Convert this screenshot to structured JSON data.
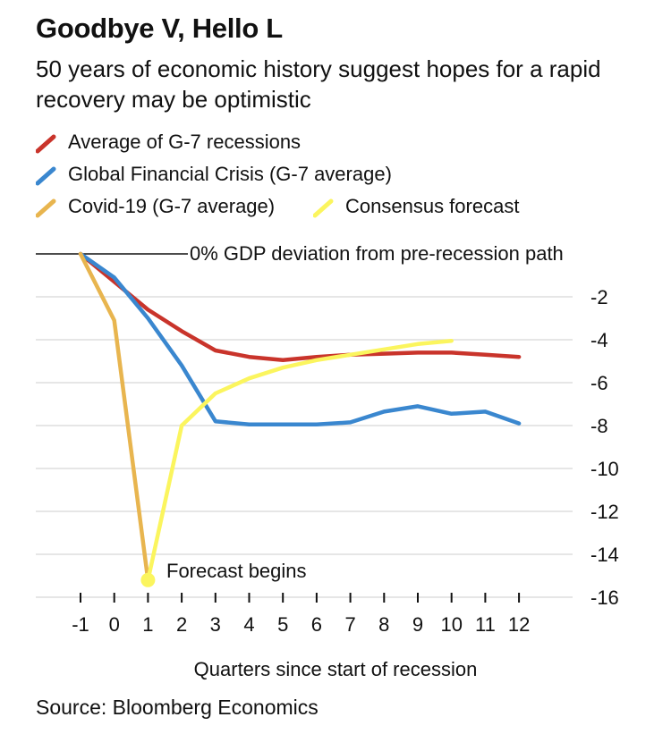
{
  "header": {
    "title": "Goodbye V, Hello L",
    "subtitle": "50 years of economic history suggest hopes for a rapid recovery may be optimistic"
  },
  "footer": {
    "source": "Source: Bloomberg Economics"
  },
  "colors": {
    "g7": "#c9342b",
    "gfc": "#3a87cf",
    "covid": "#e8b54f",
    "forecast": "#fbf55e",
    "grid": "#dddddd",
    "axis": "#111111"
  },
  "chart_data": {
    "type": "line",
    "title": "Goodbye V, Hello L",
    "subtitle": "50 years of economic history suggest hopes for a rapid recovery may be optimistic",
    "xlabel": "Quarters since start of recession",
    "ylabel": "",
    "zero_line_label": "0% GDP deviation from pre-recession path",
    "annotation": "Forecast begins",
    "x_ticks": [
      "-1",
      "0",
      "1",
      "2",
      "3",
      "4",
      "5",
      "6",
      "7",
      "8",
      "9",
      "10",
      "11",
      "12"
    ],
    "y_ticks": [
      "-2",
      "-4",
      "-6",
      "-8",
      "-10",
      "-12",
      "-14",
      "-16"
    ],
    "xlim": [
      -1,
      12
    ],
    "ylim": [
      -16,
      0
    ],
    "grid": true,
    "legend_position": "top-left",
    "series": [
      {
        "name": "Average of G-7 recessions",
        "color": "#c9342b",
        "x": [
          -1,
          0,
          1,
          2,
          3,
          4,
          5,
          6,
          7,
          8,
          9,
          10,
          11,
          12
        ],
        "y": [
          0,
          -1.3,
          -2.6,
          -3.6,
          -4.5,
          -4.8,
          -4.95,
          -4.8,
          -4.7,
          -4.65,
          -4.6,
          -4.6,
          -4.7,
          -4.8
        ]
      },
      {
        "name": "Global Financial Crisis (G-7 average)",
        "color": "#3a87cf",
        "x": [
          -1,
          0,
          1,
          2,
          3,
          4,
          5,
          6,
          7,
          8,
          9,
          10,
          11,
          12
        ],
        "y": [
          0,
          -1.1,
          -3.0,
          -5.2,
          -7.8,
          -7.95,
          -7.95,
          -7.95,
          -7.85,
          -7.35,
          -7.1,
          -7.45,
          -7.35,
          -7.9
        ]
      },
      {
        "name": "Covid-19 (G-7 average)",
        "color": "#e8b54f",
        "x": [
          -1,
          0,
          1
        ],
        "y": [
          0,
          -3.1,
          -15.2
        ]
      },
      {
        "name": "Consensus forecast",
        "color": "#fbf55e",
        "x": [
          1,
          2,
          3,
          4,
          5,
          6,
          7,
          8,
          9,
          10
        ],
        "y": [
          -15.2,
          -8.0,
          -6.5,
          -5.8,
          -5.3,
          -4.95,
          -4.7,
          -4.45,
          -4.2,
          -4.05
        ]
      }
    ]
  }
}
